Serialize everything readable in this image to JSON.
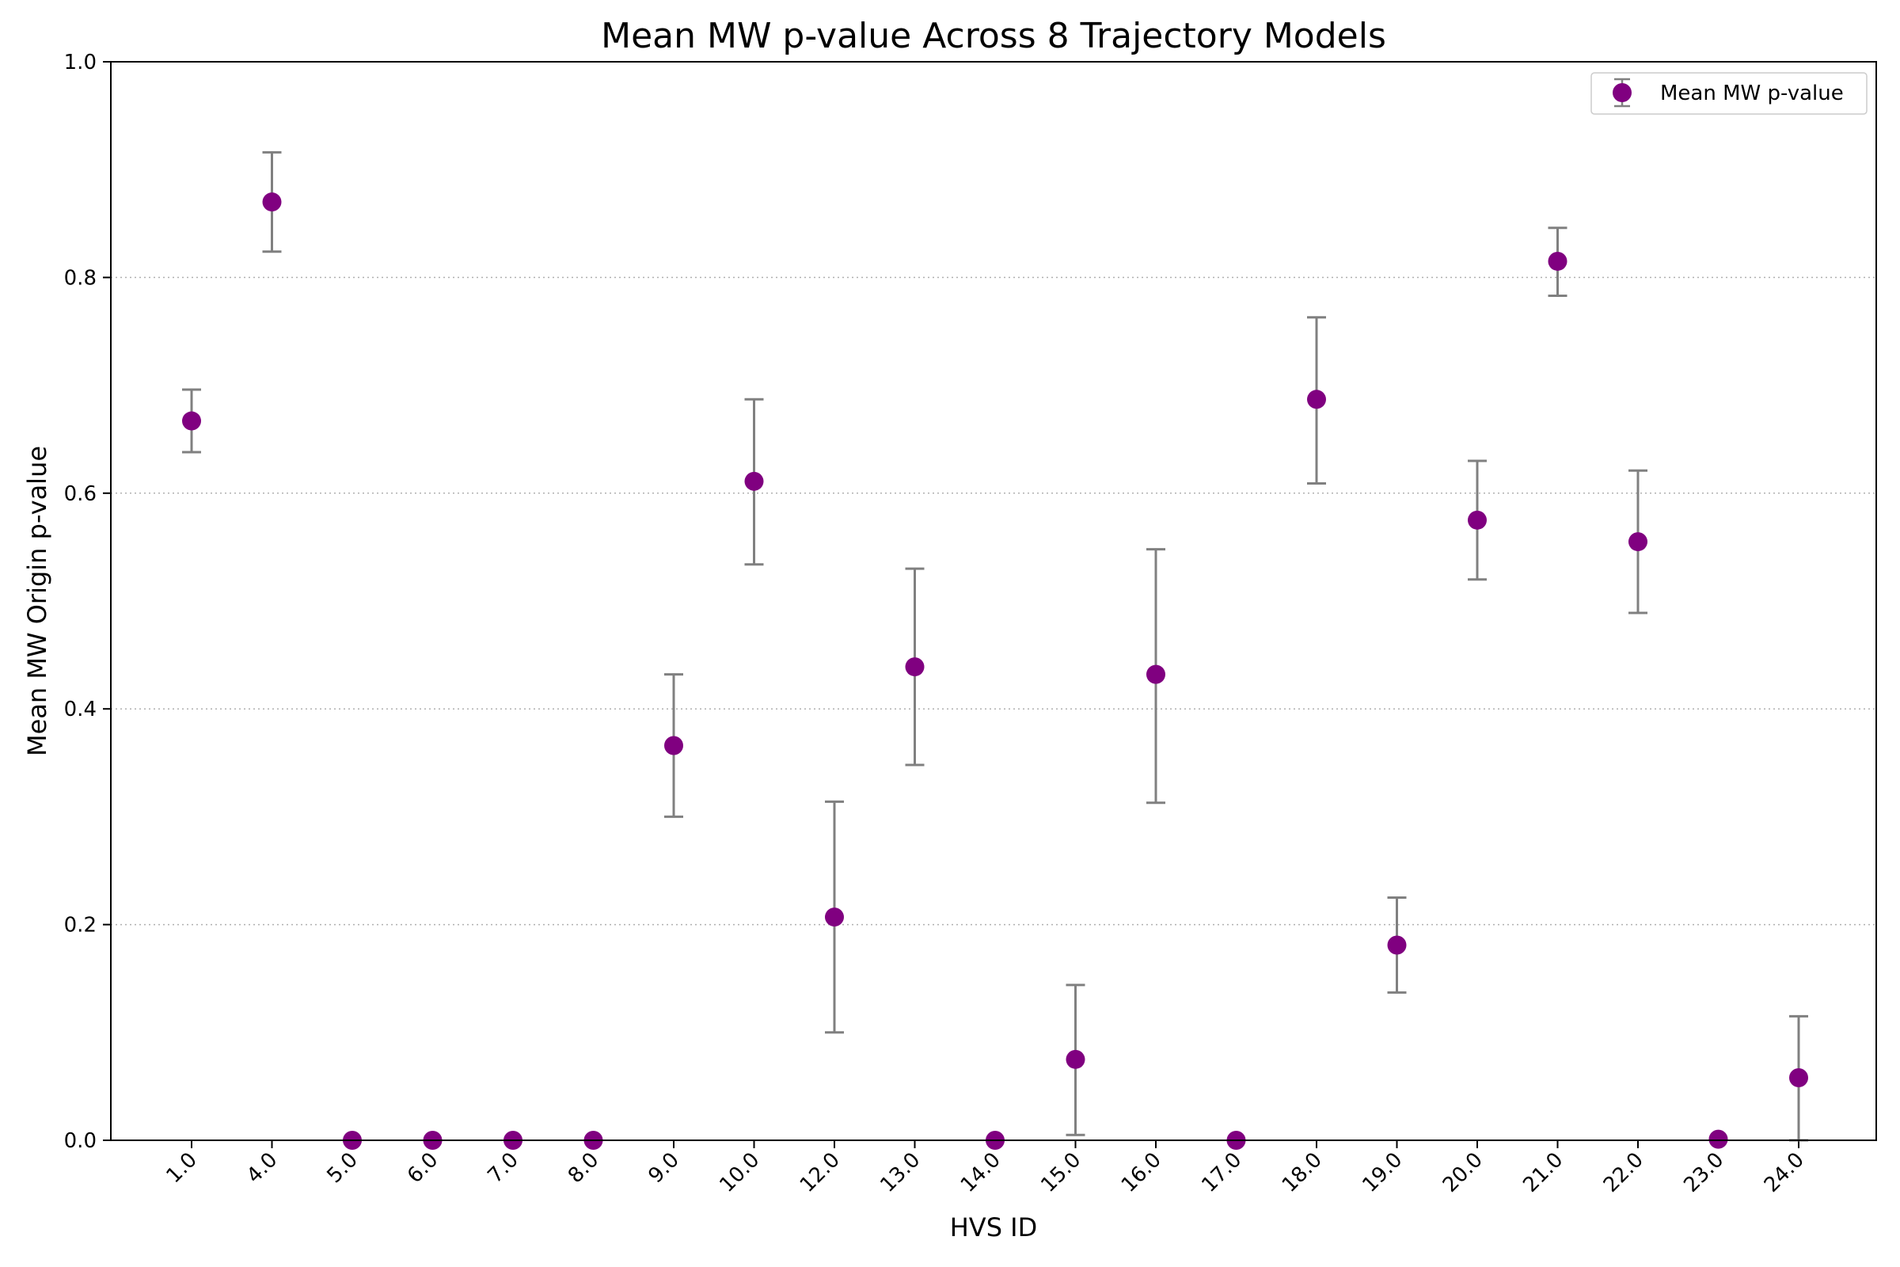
{
  "chart_data": {
    "type": "scatter",
    "title": "Mean MW p-value Across 8 Trajectory Models",
    "xlabel": "HVS ID",
    "ylabel": "Mean MW Origin p-value",
    "ylim": [
      0,
      1.0
    ],
    "yticks": [
      "0.0",
      "0.2",
      "0.4",
      "0.6",
      "0.8",
      "1.0"
    ],
    "ytick_values": [
      0,
      0.2,
      0.4,
      0.6,
      0.8,
      1.0
    ],
    "grid": "y dotted",
    "legend": {
      "position": "top-right",
      "entries": [
        "Mean MW p-value"
      ]
    },
    "categories": [
      "1.0",
      "4.0",
      "5.0",
      "6.0",
      "7.0",
      "8.0",
      "9.0",
      "10.0",
      "12.0",
      "13.0",
      "14.0",
      "15.0",
      "16.0",
      "17.0",
      "18.0",
      "19.0",
      "20.0",
      "21.0",
      "22.0",
      "23.0",
      "24.0"
    ],
    "series": [
      {
        "name": "Mean MW p-value",
        "color": "#800080",
        "errorbar_color": "#808080",
        "values": [
          0.667,
          0.87,
          0.0,
          0.0,
          0.0,
          0.0,
          0.366,
          0.611,
          0.207,
          0.439,
          0.0,
          0.075,
          0.432,
          0.0,
          0.687,
          0.181,
          0.575,
          0.815,
          0.555,
          0.001,
          0.058
        ],
        "err_low": [
          0.638,
          0.824,
          null,
          null,
          null,
          null,
          0.3,
          0.534,
          0.1,
          0.348,
          null,
          0.005,
          0.313,
          null,
          0.609,
          0.137,
          0.52,
          0.783,
          0.489,
          null,
          0.0
        ],
        "err_high": [
          0.696,
          0.916,
          null,
          null,
          null,
          null,
          0.432,
          0.687,
          0.314,
          0.53,
          null,
          0.144,
          0.548,
          null,
          0.763,
          0.225,
          0.63,
          0.846,
          0.621,
          null,
          0.115
        ]
      }
    ]
  }
}
